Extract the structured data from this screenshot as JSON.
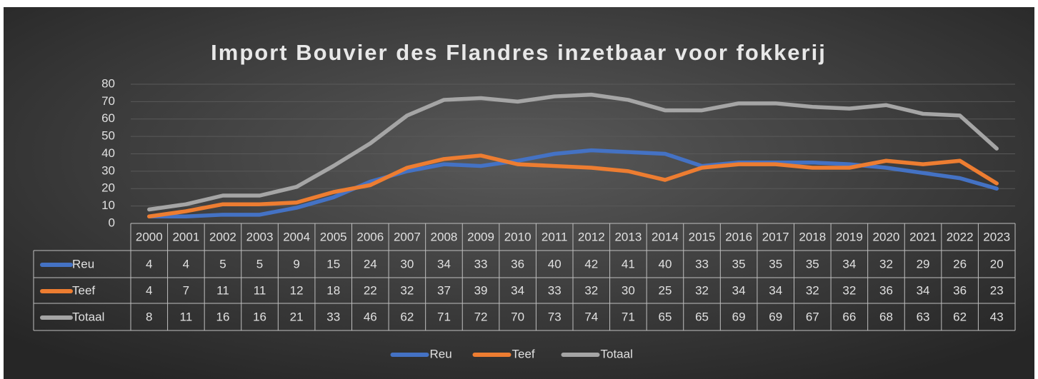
{
  "chart_data": {
    "type": "line",
    "title": "Import Bouvier des Flandres inzetbaar voor fokkerij",
    "categories": [
      "2000",
      "2001",
      "2002",
      "2003",
      "2004",
      "2005",
      "2006",
      "2007",
      "2008",
      "2009",
      "2010",
      "2011",
      "2012",
      "2013",
      "2014",
      "2015",
      "2016",
      "2017",
      "2018",
      "2019",
      "2020",
      "2021",
      "2022",
      "2023"
    ],
    "series": [
      {
        "name": "Reu",
        "color": "#4472c4",
        "values": [
          4,
          4,
          5,
          5,
          9,
          15,
          24,
          30,
          34,
          33,
          36,
          40,
          42,
          41,
          40,
          33,
          35,
          35,
          35,
          34,
          32,
          29,
          26,
          20
        ]
      },
      {
        "name": "Teef",
        "color": "#ed7d31",
        "values": [
          4,
          7,
          11,
          11,
          12,
          18,
          22,
          32,
          37,
          39,
          34,
          33,
          32,
          30,
          25,
          32,
          34,
          34,
          32,
          32,
          36,
          34,
          36,
          23
        ]
      },
      {
        "name": "Totaal",
        "color": "#a5a5a5",
        "values": [
          8,
          11,
          16,
          16,
          21,
          33,
          46,
          62,
          71,
          72,
          70,
          73,
          74,
          71,
          65,
          65,
          69,
          69,
          67,
          66,
          68,
          63,
          62,
          43
        ]
      }
    ],
    "ylim": [
      0,
      80
    ],
    "yticks": [
      0,
      10,
      20,
      30,
      40,
      50,
      60,
      70,
      80
    ],
    "grid": true,
    "legend": "bottom"
  }
}
